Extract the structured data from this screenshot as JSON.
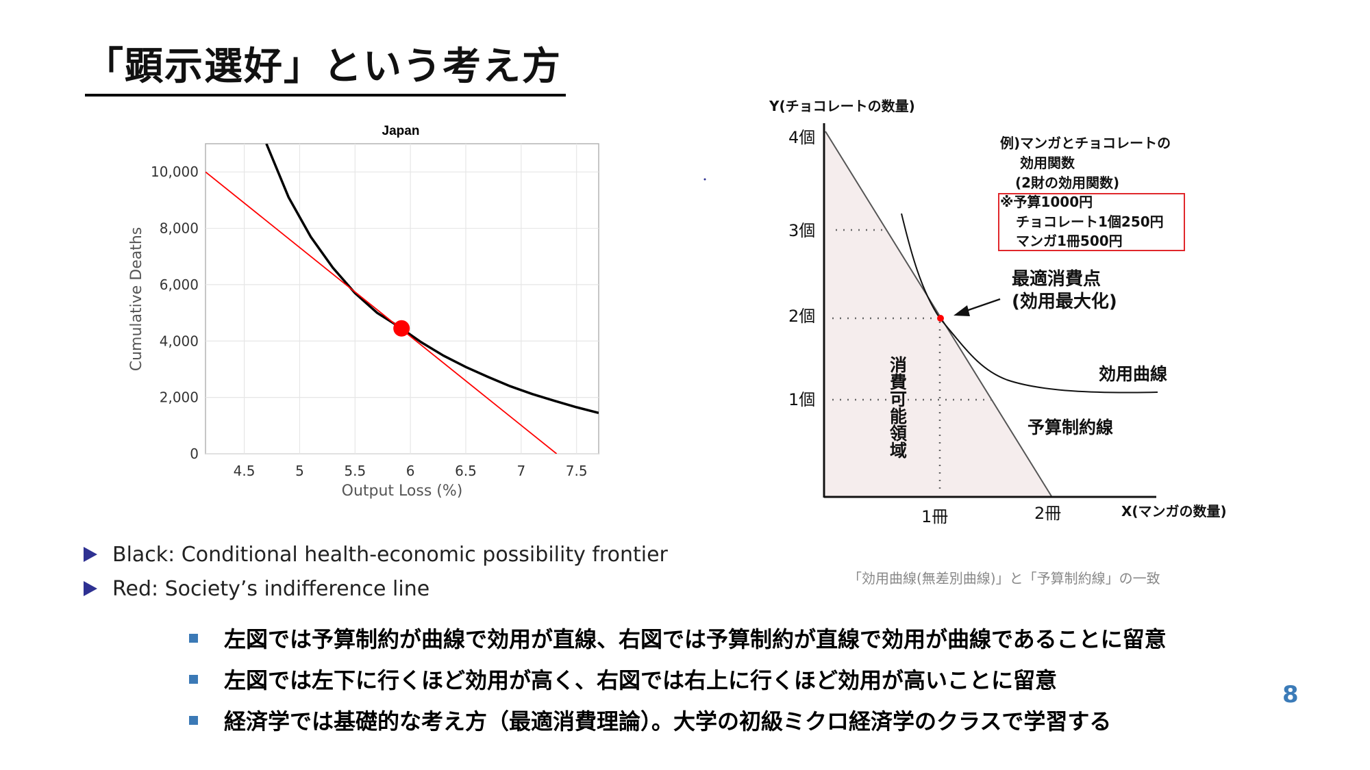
{
  "slide": {
    "title": "「顕示選好」という考え方",
    "page_number": "8",
    "bullets": [
      "Black: Conditional health-economic possibility frontier",
      "Red: Society’s indifference line"
    ],
    "notes": [
      "左図では予算制約が曲線で効用が直線、右図では予算制約が直線で効用が曲線であることに留意",
      "左図では左下に行くほど効用が高く、右図では右上に行くほど効用が高いことに留意",
      "経済学では基礎的な考え方（最適消費理論）。大学の初級ミクロ経済学のクラスで学習する"
    ],
    "colors": {
      "title_underline": "#000000",
      "bullet_triangle": "#2e3192",
      "note_square": "#3b79b6",
      "page_number": "#3b7bb8"
    }
  },
  "chart_data": [
    {
      "type": "line",
      "title": "Japan",
      "xlabel": "Output Loss (%)",
      "ylabel": "Cumulative Deaths",
      "xlim": [
        4.15,
        7.7
      ],
      "ylim": [
        0,
        11000
      ],
      "x_ticks": [
        "4.5",
        "5",
        "5.5",
        "6",
        "6.5",
        "7",
        "7.5"
      ],
      "y_ticks": [
        "0",
        "2,000",
        "4,000",
        "6,000",
        "8,000",
        "10,000"
      ],
      "grid": true,
      "series": [
        {
          "color": "#000000",
          "x": [
            4.7,
            4.9,
            5.1,
            5.3,
            5.5,
            5.7,
            5.9,
            6.1,
            6.3,
            6.5,
            6.7,
            6.9,
            7.1,
            7.3,
            7.5,
            7.7
          ],
          "y": [
            11000,
            9100,
            7700,
            6600,
            5700,
            5000,
            4500,
            3950,
            3480,
            3080,
            2730,
            2400,
            2120,
            1880,
            1650,
            1450
          ]
        },
        {
          "color": "#ff0000",
          "x": [
            4.15,
            7.32
          ],
          "y": [
            10000,
            0
          ]
        }
      ],
      "highlight_point": {
        "x": 5.92,
        "y": 4450,
        "color": "#ff0000"
      }
    },
    {
      "type": "line",
      "ylabel": "Y(チョコレートの数量)",
      "xlabel": "X(マンガの数量)",
      "y_ticks": [
        "1個",
        "2個",
        "3個",
        "4個"
      ],
      "x_ticks": [
        "1冊",
        "2冊"
      ],
      "series": [
        {
          "name": "予算制約線",
          "x": [
            0,
            2
          ],
          "y": [
            4,
            0
          ]
        },
        {
          "name": "効用曲線",
          "x": [
            0.7,
            0.9,
            1.0,
            1.2,
            1.5,
            2.0,
            3.0
          ],
          "y": [
            3.3,
            2.45,
            2.0,
            1.5,
            1.15,
            0.98,
            0.9
          ]
        }
      ],
      "annotations": {
        "example": [
          "例)マンガとチョコレートの",
          "効用関数",
          "(2財の効用関数)"
        ],
        "budget_box": [
          "※予算1000円",
          "チョコレート1個250円",
          "マンガ1冊500円"
        ],
        "optimum_label": [
          "最適消費点",
          "(効用最大化)"
        ],
        "region_label": "消費可能領域",
        "utility_label": "効用曲線",
        "budget_label": "予算制約線",
        "caption": "「効用曲線(無差別曲線)」と「予算制約線」の一致"
      },
      "optimum_point": {
        "x": 1,
        "y": 2
      },
      "colors": {
        "region": "#f5eded",
        "box_border": "#e0262a",
        "point": "#ff0000"
      }
    }
  ]
}
